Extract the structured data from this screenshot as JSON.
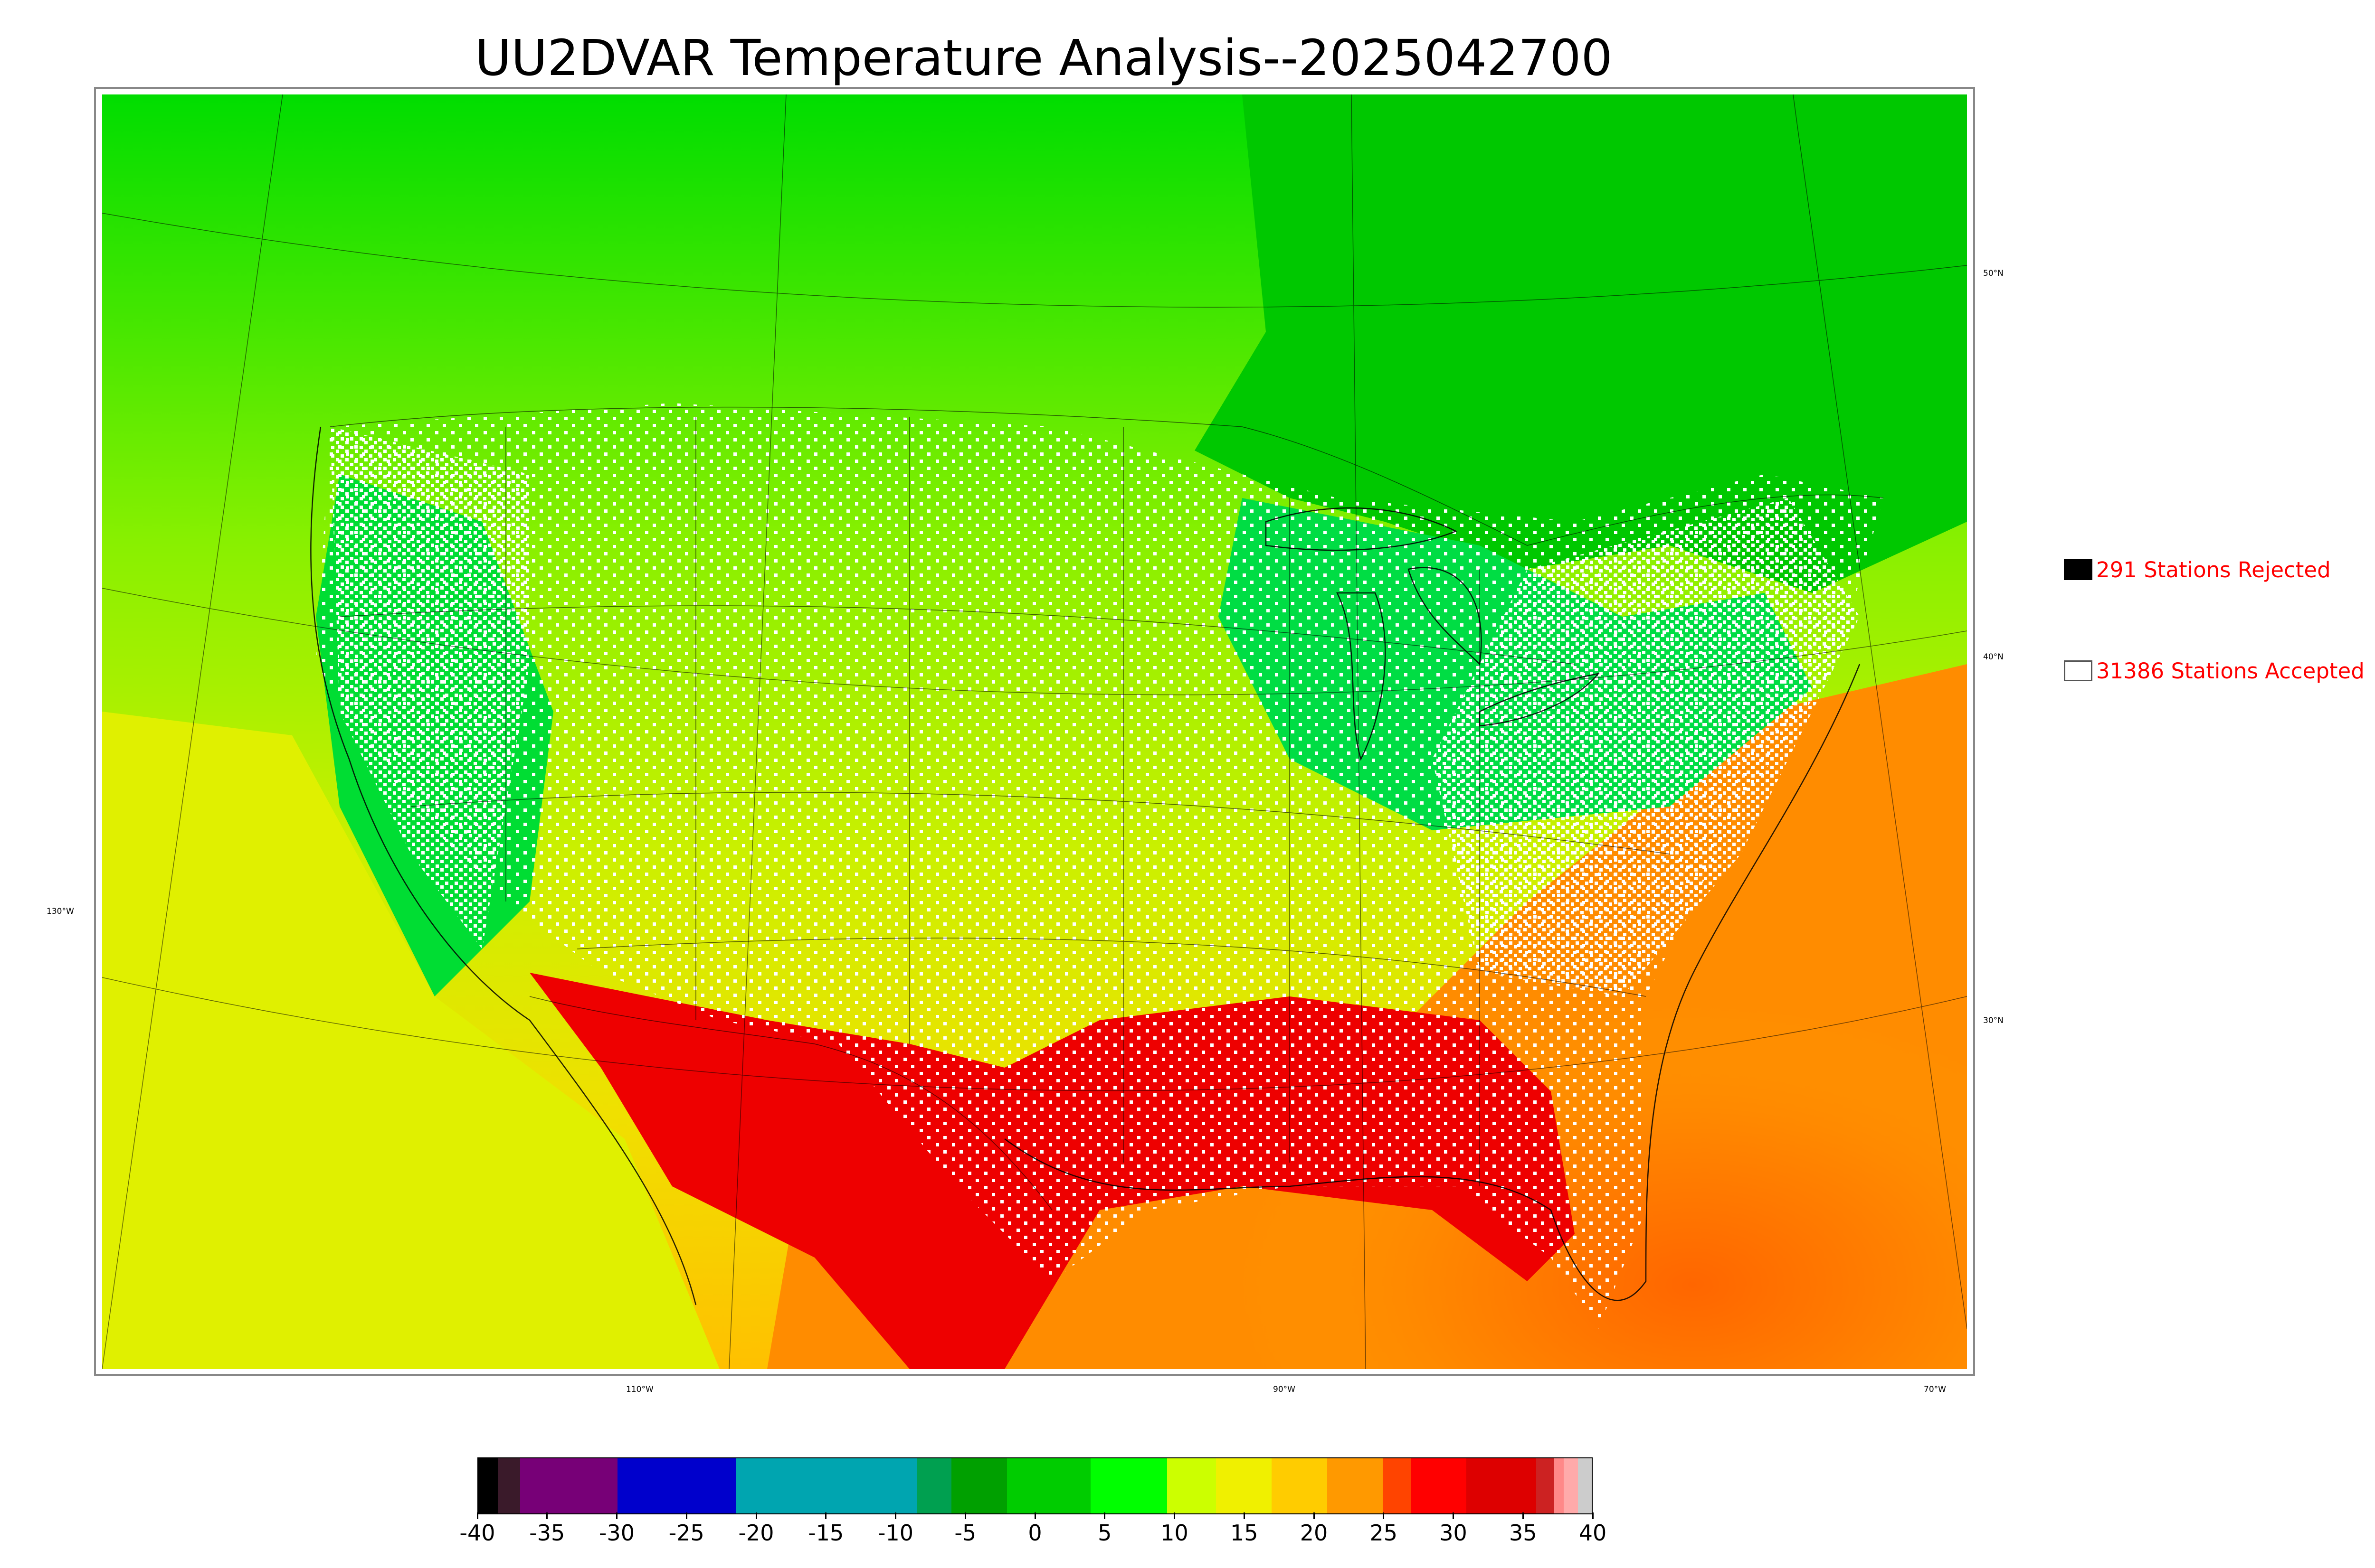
{
  "title": "UU2DVAR Temperature Analysis--2025042700",
  "map": {
    "lon_labels": [
      "130°W",
      "110°W",
      "90°W",
      "70°W"
    ],
    "lat_labels": [
      "50°N",
      "40°N",
      "30°N"
    ]
  },
  "legend": {
    "rejected_label": "291 Stations Rejected",
    "accepted_label": "31386 Stations Accepted",
    "rejected_count": 291,
    "accepted_count": 31386,
    "rejected_color": "#000000",
    "accepted_color": "#ffffff",
    "text_color": "#ff0000"
  },
  "colorbar": {
    "min": -40,
    "max": 40,
    "ticks": [
      "-40",
      "-35",
      "-30",
      "-25",
      "-20",
      "-15",
      "-10",
      "-5",
      "0",
      "5",
      "10",
      "15",
      "20",
      "25",
      "30",
      "35",
      "40"
    ],
    "segments": [
      {
        "from": -40,
        "to": -38.6,
        "color": "#000000"
      },
      {
        "from": -38.6,
        "to": -37,
        "color": "#3a1a2a"
      },
      {
        "from": -37,
        "to": -30,
        "color": "#770077"
      },
      {
        "from": -30,
        "to": -21.5,
        "color": "#0000cc"
      },
      {
        "from": -21.5,
        "to": -8.5,
        "color": "#00a5b0"
      },
      {
        "from": -8.5,
        "to": -6,
        "color": "#00a050"
      },
      {
        "from": -6,
        "to": -2,
        "color": "#00a000"
      },
      {
        "from": -2,
        "to": 4,
        "color": "#00cc00"
      },
      {
        "from": 4,
        "to": 9.5,
        "color": "#00ff00"
      },
      {
        "from": 9.5,
        "to": 13,
        "color": "#ccff00"
      },
      {
        "from": 13,
        "to": 17,
        "color": "#f0f000"
      },
      {
        "from": 17,
        "to": 21,
        "color": "#ffcc00"
      },
      {
        "from": 21,
        "to": 25,
        "color": "#ff9900"
      },
      {
        "from": 25,
        "to": 27,
        "color": "#ff4400"
      },
      {
        "from": 27,
        "to": 31,
        "color": "#ff0000"
      },
      {
        "from": 31,
        "to": 36,
        "color": "#dd0000"
      },
      {
        "from": 36,
        "to": 37.3,
        "color": "#cc2222"
      },
      {
        "from": 37.3,
        "to": 38,
        "color": "#ff8888"
      },
      {
        "from": 38,
        "to": 39,
        "color": "#ffaaaa"
      },
      {
        "from": 39,
        "to": 40,
        "color": "#cccccc"
      }
    ]
  }
}
